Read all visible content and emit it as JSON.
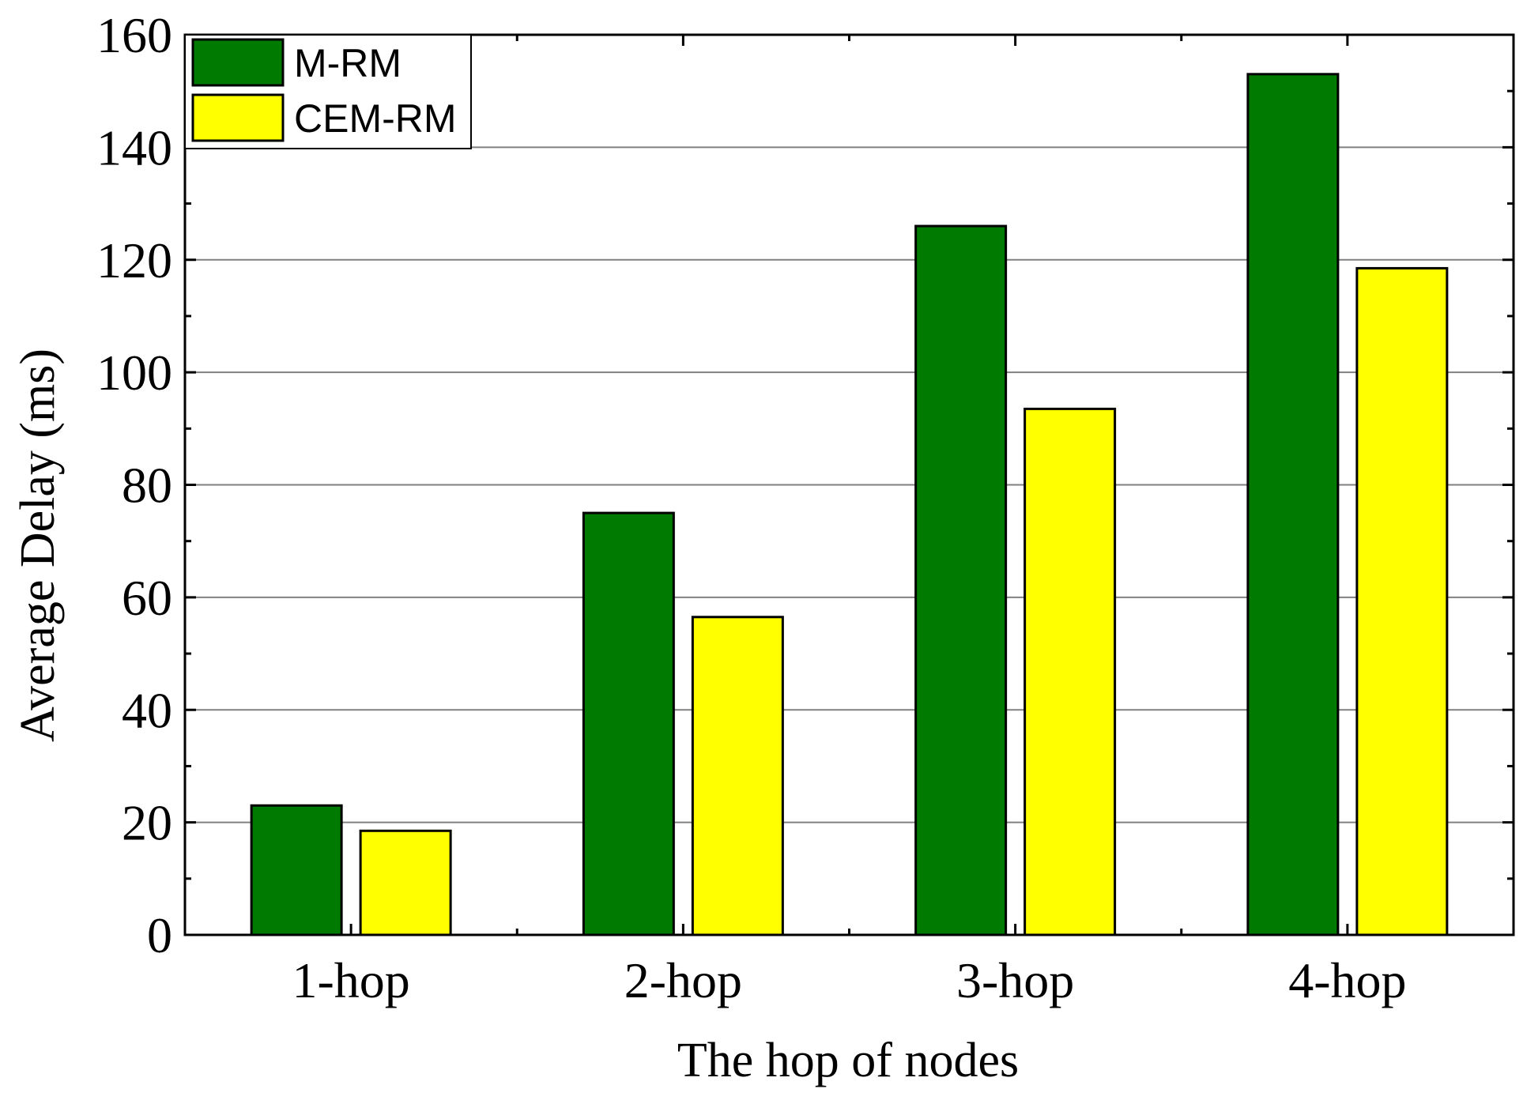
{
  "chart_data": {
    "type": "bar",
    "title": "",
    "xlabel": "The hop of nodes",
    "ylabel": "Average Delay (ms)",
    "categories": [
      "1-hop",
      "2-hop",
      "3-hop",
      "4-hop"
    ],
    "series": [
      {
        "name": "M-RM",
        "color": "#007a00",
        "values": [
          23,
          75,
          126,
          153
        ]
      },
      {
        "name": "CEM-RM",
        "color": "#ffff00",
        "values": [
          18.5,
          56.5,
          93.5,
          118.5
        ]
      }
    ],
    "ylim": [
      0,
      160
    ],
    "yticks": [
      0,
      20,
      40,
      60,
      80,
      100,
      120,
      140,
      160
    ],
    "grid": true,
    "legend_position": "top-left"
  }
}
